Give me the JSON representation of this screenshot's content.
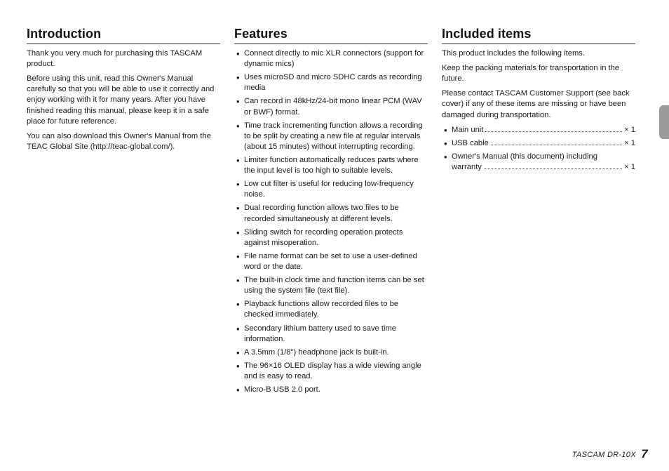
{
  "page": {
    "footer_model": "TASCAM  DR-10X",
    "footer_page": "7",
    "sidebar_tab_color": "#9a9a9a"
  },
  "introduction": {
    "heading": "Introduction",
    "paragraphs": [
      "Thank you very much for purchasing this TASCAM product.",
      "Before using this unit, read this Owner's Manual carefully so that you will be able to use it correctly and enjoy working with it for many years. After you have finished reading this manual, please keep it in a safe place for future reference.",
      "You can also download this Owner's Manual from the TEAC Global Site (http://teac-global.com/)."
    ]
  },
  "features": {
    "heading": "Features",
    "items": [
      "Connect directly to mic XLR connectors (support for dynamic mics)",
      "Uses microSD and micro SDHC cards as recording media",
      "Can record in 48kHz/24-bit mono linear PCM (WAV or BWF) format.",
      "Time track incrementing function allows a recording to be split by creating a new file at regular intervals (about 15 minutes) without interrupting recording.",
      "Limiter function automatically reduces parts where the input level is too high to suitable levels.",
      "Low cut filter is useful for reducing low-frequency noise.",
      "Dual recording function allows two files to be recorded simultaneously at different levels.",
      "Sliding switch for recording operation protects against misoperation.",
      "File name format can be set to use a user-defined word or the date.",
      "The built-in clock time and function items can be set using the system file (text file).",
      "Playback functions allow recorded files to be checked immediately.",
      "Secondary lithium battery used to save time information.",
      "A 3.5mm (1/8\") headphone jack is built-in.",
      "The 96×16 OLED display has a wide viewing angle and is easy to read.",
      "Micro-B USB 2.0 port."
    ]
  },
  "included": {
    "heading": "Included items",
    "paragraphs": [
      "This product includes the following items.",
      "Keep the packing materials for transportation in the future.",
      "Please contact TASCAM Customer Support (see back cover) if any of these items are missing or have been damaged during transportation."
    ],
    "items": [
      {
        "label": "Main unit",
        "qty": "× 1",
        "wrap": false
      },
      {
        "label": "USB cable",
        "qty": "× 1",
        "wrap": false
      },
      {
        "label_line1": "Owner's Manual (this document) including",
        "label_line2": "warranty",
        "qty": "× 1",
        "wrap": true
      }
    ]
  }
}
